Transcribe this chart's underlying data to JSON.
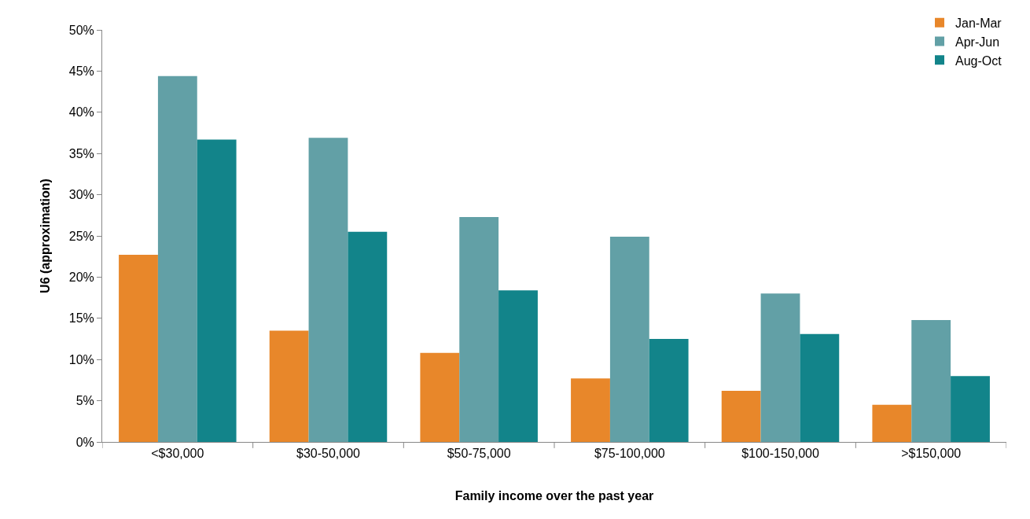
{
  "chart_data": {
    "type": "bar",
    "xlabel": "Family income over the past year",
    "ylabel": "U6 (approximation)",
    "categories": [
      "<$30,000",
      "$30-50,000",
      "$50-75,000",
      "$75-100,000",
      "$100-150,000",
      ">$150,000"
    ],
    "series": [
      {
        "name": "Jan-Mar",
        "color": "#e8872a",
        "values": [
          22.7,
          13.5,
          10.8,
          7.7,
          6.2,
          4.5
        ]
      },
      {
        "name": "Apr-Jun",
        "color": "#62a0a6",
        "values": [
          44.4,
          36.9,
          27.3,
          24.9,
          18.0,
          14.8
        ]
      },
      {
        "name": "Aug-Oct",
        "color": "#12848a",
        "values": [
          36.7,
          25.5,
          18.4,
          12.5,
          13.1,
          8.0
        ]
      }
    ],
    "ylim": [
      0,
      50
    ],
    "yticks": [
      {
        "value": 0,
        "label": "0%"
      },
      {
        "value": 5,
        "label": "5%"
      },
      {
        "value": 10,
        "label": "10%"
      },
      {
        "value": 15,
        "label": "15%"
      },
      {
        "value": 20,
        "label": "20%"
      },
      {
        "value": 25,
        "label": "25%"
      },
      {
        "value": 30,
        "label": "30%"
      },
      {
        "value": 35,
        "label": "35%"
      },
      {
        "value": 40,
        "label": "40%"
      },
      {
        "value": 45,
        "label": "45%"
      },
      {
        "value": 50,
        "label": "50%"
      }
    ],
    "grid": false,
    "legend": "top right"
  }
}
